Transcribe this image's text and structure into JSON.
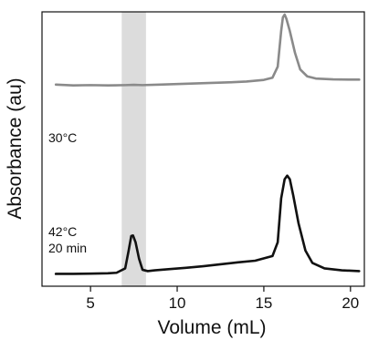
{
  "chart_data": {
    "type": "line",
    "xlabel": "Volume (mL)",
    "ylabel": "Absorbance (au)",
    "xlim": [
      2.2,
      20.8
    ],
    "ylim": [
      0,
      1
    ],
    "xticks": [
      5,
      10,
      15,
      20
    ],
    "xtick_labels": [
      "5",
      "10",
      "15",
      "20"
    ],
    "y_ticks_labeled": false,
    "grid": false,
    "shaded_region": {
      "x": [
        6.8,
        8.2
      ],
      "color": "#dcdcdc"
    },
    "annotations": [
      {
        "text": "30°C",
        "near_series": 0
      },
      {
        "text": "42°C",
        "near_series": 1
      },
      {
        "text": "20 min",
        "near_series": 1
      }
    ],
    "series": [
      {
        "color": "#8a8a8a",
        "x": [
          3.0,
          4.0,
          5.0,
          6.0,
          7.0,
          7.5,
          8.0,
          9.0,
          10.0,
          11.0,
          12.0,
          13.0,
          14.0,
          15.0,
          15.5,
          15.8,
          16.0,
          16.1,
          16.2,
          16.3,
          16.5,
          16.8,
          17.1,
          17.5,
          18.0,
          19.0,
          20.0,
          20.5
        ],
        "y": [
          0.735,
          0.732,
          0.733,
          0.732,
          0.733,
          0.734,
          0.733,
          0.735,
          0.737,
          0.739,
          0.741,
          0.743,
          0.746,
          0.752,
          0.76,
          0.8,
          0.93,
          0.98,
          0.99,
          0.975,
          0.93,
          0.85,
          0.79,
          0.765,
          0.757,
          0.754,
          0.753,
          0.753
        ]
      },
      {
        "color": "#111111",
        "x": [
          3.0,
          4.0,
          5.0,
          6.0,
          6.5,
          7.0,
          7.2,
          7.35,
          7.45,
          7.6,
          7.8,
          8.0,
          8.3,
          8.7,
          9.5,
          10.5,
          11.5,
          12.5,
          13.5,
          14.5,
          15.5,
          15.8,
          16.0,
          16.2,
          16.35,
          16.5,
          16.7,
          17.0,
          17.4,
          17.8,
          18.5,
          19.5,
          20.5
        ],
        "y": [
          0.045,
          0.045,
          0.046,
          0.047,
          0.049,
          0.065,
          0.13,
          0.183,
          0.185,
          0.16,
          0.1,
          0.06,
          0.055,
          0.058,
          0.062,
          0.067,
          0.073,
          0.08,
          0.087,
          0.093,
          0.11,
          0.16,
          0.32,
          0.39,
          0.403,
          0.39,
          0.33,
          0.23,
          0.13,
          0.085,
          0.065,
          0.058,
          0.055
        ]
      }
    ]
  }
}
